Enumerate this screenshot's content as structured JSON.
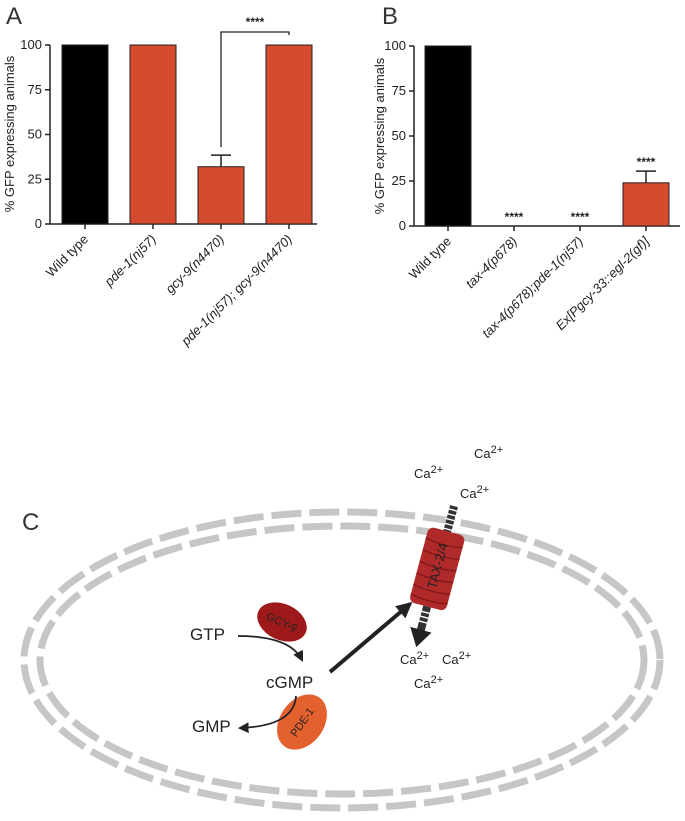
{
  "panels": {
    "a": "A",
    "b": "B",
    "c": "C"
  },
  "chart_data": [
    {
      "type": "bar",
      "panel": "A",
      "ylabel": "% GFP expressing animals",
      "ylim": [
        0,
        100
      ],
      "yticks": [
        0,
        25,
        50,
        75,
        100
      ],
      "categories": [
        [
          "Wild type"
        ],
        [
          "pde-1(",
          "nj57",
          ")"
        ],
        [
          "gcy-9(",
          "n4470",
          ")"
        ],
        [
          "pde-1(",
          "nj57",
          "); gcy-9(",
          "n4470",
          ")"
        ]
      ],
      "category_italic": [
        [
          false
        ],
        [
          true,
          true,
          true
        ],
        [
          true,
          true,
          true
        ],
        [
          true,
          true,
          true,
          true,
          true
        ]
      ],
      "values": [
        100,
        100,
        32,
        100
      ],
      "errors": [
        0,
        0,
        6.5,
        0
      ],
      "colors": [
        "#000000",
        "#d64a2e",
        "#d64a2e",
        "#d64a2e"
      ],
      "bracket": {
        "from": 2,
        "to": 3,
        "label": "****"
      }
    },
    {
      "type": "bar",
      "panel": "B",
      "ylabel": "% GFP expressing animals",
      "ylim": [
        0,
        100
      ],
      "yticks": [
        0,
        25,
        50,
        75,
        100
      ],
      "categories": [
        [
          "Wild type"
        ],
        [
          "tax-4(",
          "p678",
          ")"
        ],
        [
          "tax-4(",
          "p678",
          ");pde-1(",
          "nj57",
          ")"
        ],
        [
          "Ex[Pgcy-33::egl-2(",
          "gf",
          ")]"
        ]
      ],
      "category_italic": [
        [
          false
        ],
        [
          true,
          true,
          true
        ],
        [
          true,
          true,
          true,
          true,
          true
        ],
        [
          true,
          true,
          true
        ]
      ],
      "values": [
        100,
        0,
        0,
        24
      ],
      "errors": [
        0,
        0,
        0,
        6.5
      ],
      "colors": [
        "#000000",
        "#d64a2e",
        "#d64a2e",
        "#d64a2e"
      ],
      "bar_labels": [
        "",
        "****",
        "****",
        "****"
      ]
    }
  ],
  "diagram": {
    "gtp": "GTP",
    "cgmp": "cGMP",
    "gmp": "GMP",
    "gcy9": "GCY-9",
    "pde1": "PDE-1",
    "tax24": "TAX-2/4",
    "ca_outside": [
      "Ca2+",
      "Ca2+",
      "Ca2+"
    ],
    "ca_inside": [
      "Ca2+",
      "Ca2+",
      "Ca2+"
    ],
    "colors": {
      "gcy9": "#9e1a1a",
      "pde1": "#e3612f",
      "channel": "#b02a2a",
      "membrane": "#c6c6c6"
    }
  }
}
